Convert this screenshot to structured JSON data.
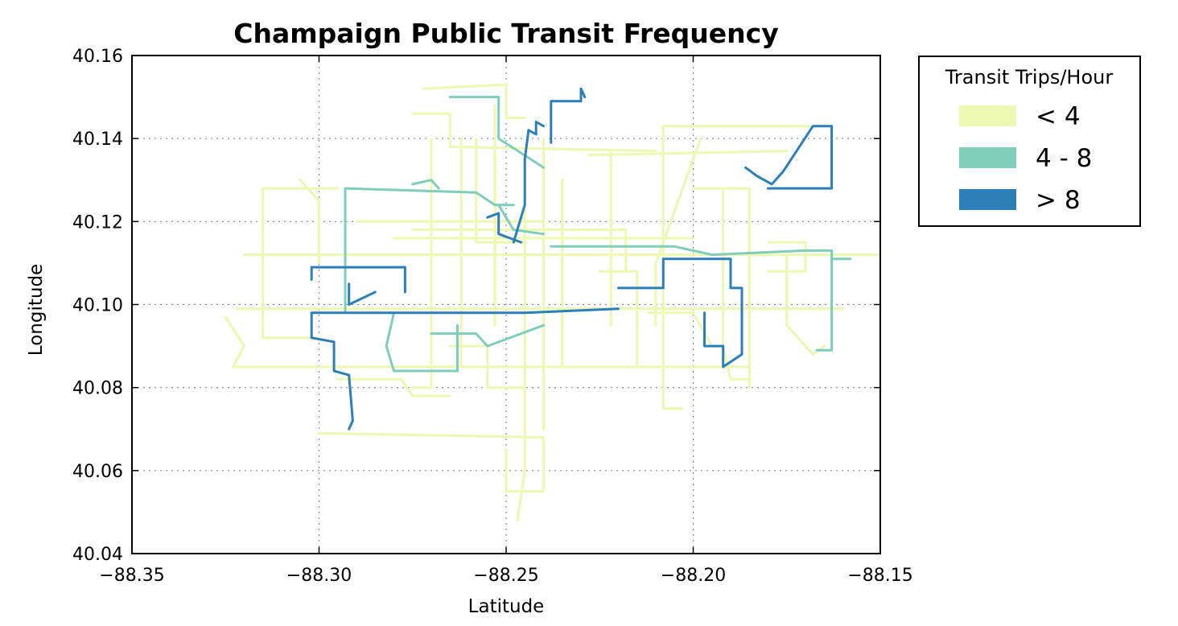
{
  "chart_data": {
    "type": "line",
    "title": "Champaign Public Transit Frequency",
    "xlabel": "Latitude",
    "ylabel": "Longitude",
    "xlim": [
      -88.35,
      -88.15
    ],
    "ylim": [
      40.04,
      40.16
    ],
    "xticks": [
      -88.35,
      -88.3,
      -88.25,
      -88.2,
      -88.15
    ],
    "xtick_labels": [
      "−88.35",
      "−88.30",
      "−88.25",
      "−88.20",
      "−88.15"
    ],
    "yticks": [
      40.04,
      40.06,
      40.08,
      40.1,
      40.12,
      40.14,
      40.16
    ],
    "ytick_labels": [
      "40.04",
      "40.06",
      "40.08",
      "40.10",
      "40.12",
      "40.14",
      "40.16"
    ],
    "grid": true,
    "legend": {
      "title": "Transit Trips/Hour",
      "placement": "outside-top-right",
      "entries": [
        {
          "label": "< 4",
          "color": "#edf8b1"
        },
        {
          "label": "4 - 8",
          "color": "#7fcdbb"
        },
        {
          "label": "> 8",
          "color": "#2c7fb8"
        }
      ]
    },
    "series": [
      {
        "color": "#edf8b1",
        "width": 3,
        "routes": [
          [
            [
              -88.313,
              40.128
            ],
            [
              -88.295,
              40.128
            ]
          ],
          [
            [
              -88.313,
              40.128
            ],
            [
              -88.315,
              40.128
            ],
            [
              -88.315,
              40.092
            ],
            [
              -88.3,
              40.092
            ]
          ],
          [
            [
              -88.32,
              40.112
            ],
            [
              -88.15,
              40.112
            ]
          ],
          [
            [
              -88.322,
              40.099
            ],
            [
              -88.16,
              40.099
            ]
          ],
          [
            [
              -88.323,
              40.085
            ],
            [
              -88.185,
              40.085
            ]
          ],
          [
            [
              -88.3,
              40.069
            ],
            [
              -88.24,
              40.068
            ]
          ],
          [
            [
              -88.24,
              40.068
            ],
            [
              -88.24,
              40.055
            ],
            [
              -88.25,
              40.055
            ],
            [
              -88.25,
              40.065
            ]
          ],
          [
            [
              -88.272,
              40.152
            ],
            [
              -88.25,
              40.153
            ],
            [
              -88.25,
              40.145
            ],
            [
              -88.245,
              40.145
            ]
          ],
          [
            [
              -88.275,
              40.146
            ],
            [
              -88.265,
              40.146
            ],
            [
              -88.265,
              40.138
            ],
            [
              -88.21,
              40.137
            ]
          ],
          [
            [
              -88.27,
              40.14
            ],
            [
              -88.27,
              40.08
            ],
            [
              -88.275,
              40.08
            ]
          ],
          [
            [
              -88.262,
              40.14
            ],
            [
              -88.262,
              40.085
            ]
          ],
          [
            [
              -88.258,
              40.14
            ],
            [
              -88.258,
              40.115
            ],
            [
              -88.245,
              40.115
            ]
          ],
          [
            [
              -88.253,
              40.148
            ],
            [
              -88.253,
              40.095
            ]
          ],
          [
            [
              -88.245,
              40.135
            ],
            [
              -88.245,
              40.06
            ],
            [
              -88.247,
              40.048
            ]
          ],
          [
            [
              -88.24,
              40.14
            ],
            [
              -88.24,
              40.07
            ]
          ],
          [
            [
              -88.235,
              40.13
            ],
            [
              -88.235,
              40.085
            ]
          ],
          [
            [
              -88.228,
              40.136
            ],
            [
              -88.175,
              40.137
            ]
          ],
          [
            [
              -88.222,
              40.137
            ],
            [
              -88.222,
              40.095
            ]
          ],
          [
            [
              -88.208,
              40.143
            ],
            [
              -88.165,
              40.143
            ]
          ],
          [
            [
              -88.208,
              40.143
            ],
            [
              -88.208,
              40.075
            ],
            [
              -88.203,
              40.075
            ]
          ],
          [
            [
              -88.198,
              40.14
            ],
            [
              -88.21,
              40.11
            ],
            [
              -88.21,
              40.095
            ]
          ],
          [
            [
              -88.2,
              40.128
            ],
            [
              -88.185,
              40.128
            ],
            [
              -88.185,
              40.08
            ]
          ],
          [
            [
              -88.192,
              40.128
            ],
            [
              -88.192,
              40.09
            ],
            [
              -88.19,
              40.082
            ],
            [
              -88.185,
              40.082
            ]
          ],
          [
            [
              -88.18,
              40.115
            ],
            [
              -88.17,
              40.115
            ],
            [
              -88.17,
              40.108
            ],
            [
              -88.18,
              40.108
            ]
          ],
          [
            [
              -88.175,
              40.112
            ],
            [
              -88.175,
              40.095
            ],
            [
              -88.168,
              40.088
            ],
            [
              -88.165,
              40.09
            ]
          ],
          [
            [
              -88.325,
              40.097
            ],
            [
              -88.32,
              40.09
            ],
            [
              -88.323,
              40.085
            ]
          ],
          [
            [
              -88.305,
              40.13
            ],
            [
              -88.3,
              40.125
            ],
            [
              -88.3,
              40.11
            ]
          ],
          [
            [
              -88.29,
              40.12
            ],
            [
              -88.24,
              40.12
            ],
            [
              -88.24,
              40.11
            ]
          ],
          [
            [
              -88.28,
              40.116
            ],
            [
              -88.2,
              40.116
            ]
          ],
          [
            [
              -88.275,
              40.118
            ],
            [
              -88.218,
              40.118
            ],
            [
              -88.218,
              40.108
            ]
          ],
          [
            [
              -88.265,
              40.09
            ],
            [
              -88.255,
              40.09
            ],
            [
              -88.255,
              40.08
            ],
            [
              -88.245,
              40.08
            ]
          ],
          [
            [
              -88.295,
              40.082
            ],
            [
              -88.278,
              40.082
            ],
            [
              -88.275,
              40.078
            ],
            [
              -88.265,
              40.078
            ]
          ],
          [
            [
              -88.215,
              40.085
            ],
            [
              -88.215,
              40.108
            ],
            [
              -88.225,
              40.108
            ]
          ],
          [
            [
              -88.195,
              40.09
            ],
            [
              -88.2,
              40.098
            ],
            [
              -88.212,
              40.098
            ]
          ]
        ]
      },
      {
        "color": "#7fcdbb",
        "width": 3,
        "routes": [
          [
            [
              -88.293,
              40.128
            ],
            [
              -88.258,
              40.127
            ],
            [
              -88.253,
              40.124
            ],
            [
              -88.248,
              40.124
            ]
          ],
          [
            [
              -88.293,
              40.128
            ],
            [
              -88.293,
              40.098
            ]
          ],
          [
            [
              -88.28,
              40.098
            ],
            [
              -88.282,
              40.09
            ],
            [
              -88.28,
              40.084
            ],
            [
              -88.263,
              40.084
            ],
            [
              -88.263,
              40.095
            ]
          ],
          [
            [
              -88.265,
              40.15
            ],
            [
              -88.252,
              40.15
            ],
            [
              -88.252,
              40.14
            ],
            [
              -88.24,
              40.133
            ]
          ],
          [
            [
              -88.238,
              40.114
            ],
            [
              -88.205,
              40.114
            ],
            [
              -88.195,
              40.112
            ],
            [
              -88.17,
              40.113
            ]
          ],
          [
            [
              -88.17,
              40.113
            ],
            [
              -88.163,
              40.113
            ],
            [
              -88.163,
              40.089
            ],
            [
              -88.167,
              40.089
            ]
          ],
          [
            [
              -88.163,
              40.111
            ],
            [
              -88.158,
              40.111
            ]
          ],
          [
            [
              -88.24,
              40.095
            ],
            [
              -88.255,
              40.09
            ],
            [
              -88.258,
              40.093
            ],
            [
              -88.27,
              40.093
            ]
          ],
          [
            [
              -88.275,
              40.129
            ],
            [
              -88.27,
              40.13
            ],
            [
              -88.268,
              40.128
            ]
          ],
          [
            [
              -88.252,
              40.124
            ],
            [
              -88.248,
              40.118
            ],
            [
              -88.24,
              40.117
            ]
          ]
        ]
      },
      {
        "color": "#2c7fb8",
        "width": 3,
        "routes": [
          [
            [
              -88.238,
              40.139
            ],
            [
              -88.238,
              40.149
            ],
            [
              -88.23,
              40.149
            ],
            [
              -88.23,
              40.152
            ],
            [
              -88.229,
              40.15
            ]
          ],
          [
            [
              -88.244,
              40.142
            ],
            [
              -88.242,
              40.141
            ],
            [
              -88.242,
              40.144
            ],
            [
              -88.24,
              40.143
            ]
          ],
          [
            [
              -88.244,
              40.142
            ],
            [
              -88.245,
              40.135
            ],
            [
              -88.245,
              40.124
            ],
            [
              -88.248,
              40.115
            ]
          ],
          [
            [
              -88.255,
              40.121
            ],
            [
              -88.252,
              40.122
            ],
            [
              -88.252,
              40.117
            ],
            [
              -88.246,
              40.115
            ]
          ],
          [
            [
              -88.302,
              40.106
            ],
            [
              -88.302,
              40.109
            ],
            [
              -88.277,
              40.109
            ],
            [
              -88.277,
              40.103
            ]
          ],
          [
            [
              -88.302,
              40.092
            ],
            [
              -88.302,
              40.098
            ],
            [
              -88.27,
              40.098
            ],
            [
              -88.245,
              40.098
            ],
            [
              -88.22,
              40.099
            ]
          ],
          [
            [
              -88.302,
              40.092
            ],
            [
              -88.296,
              40.091
            ],
            [
              -88.296,
              40.084
            ],
            [
              -88.292,
              40.083
            ],
            [
              -88.291,
              40.072
            ],
            [
              -88.292,
              40.07
            ]
          ],
          [
            [
              -88.22,
              40.104
            ],
            [
              -88.208,
              40.104
            ],
            [
              -88.208,
              40.111
            ],
            [
              -88.19,
              40.111
            ],
            [
              -88.19,
              40.104
            ],
            [
              -88.187,
              40.104
            ],
            [
              -88.187,
              40.088
            ]
          ],
          [
            [
              -88.187,
              40.088
            ],
            [
              -88.192,
              40.085
            ],
            [
              -88.192,
              40.09
            ],
            [
              -88.197,
              40.09
            ],
            [
              -88.197,
              40.098
            ]
          ],
          [
            [
              -88.186,
              40.133
            ],
            [
              -88.183,
              40.131
            ],
            [
              -88.179,
              40.129
            ],
            [
              -88.176,
              40.132
            ],
            [
              -88.168,
              40.143
            ],
            [
              -88.163,
              40.143
            ],
            [
              -88.163,
              40.128
            ],
            [
              -88.18,
              40.128
            ]
          ],
          [
            [
              -88.292,
              40.105
            ],
            [
              -88.292,
              40.1
            ],
            [
              -88.285,
              40.103
            ]
          ]
        ]
      }
    ]
  }
}
